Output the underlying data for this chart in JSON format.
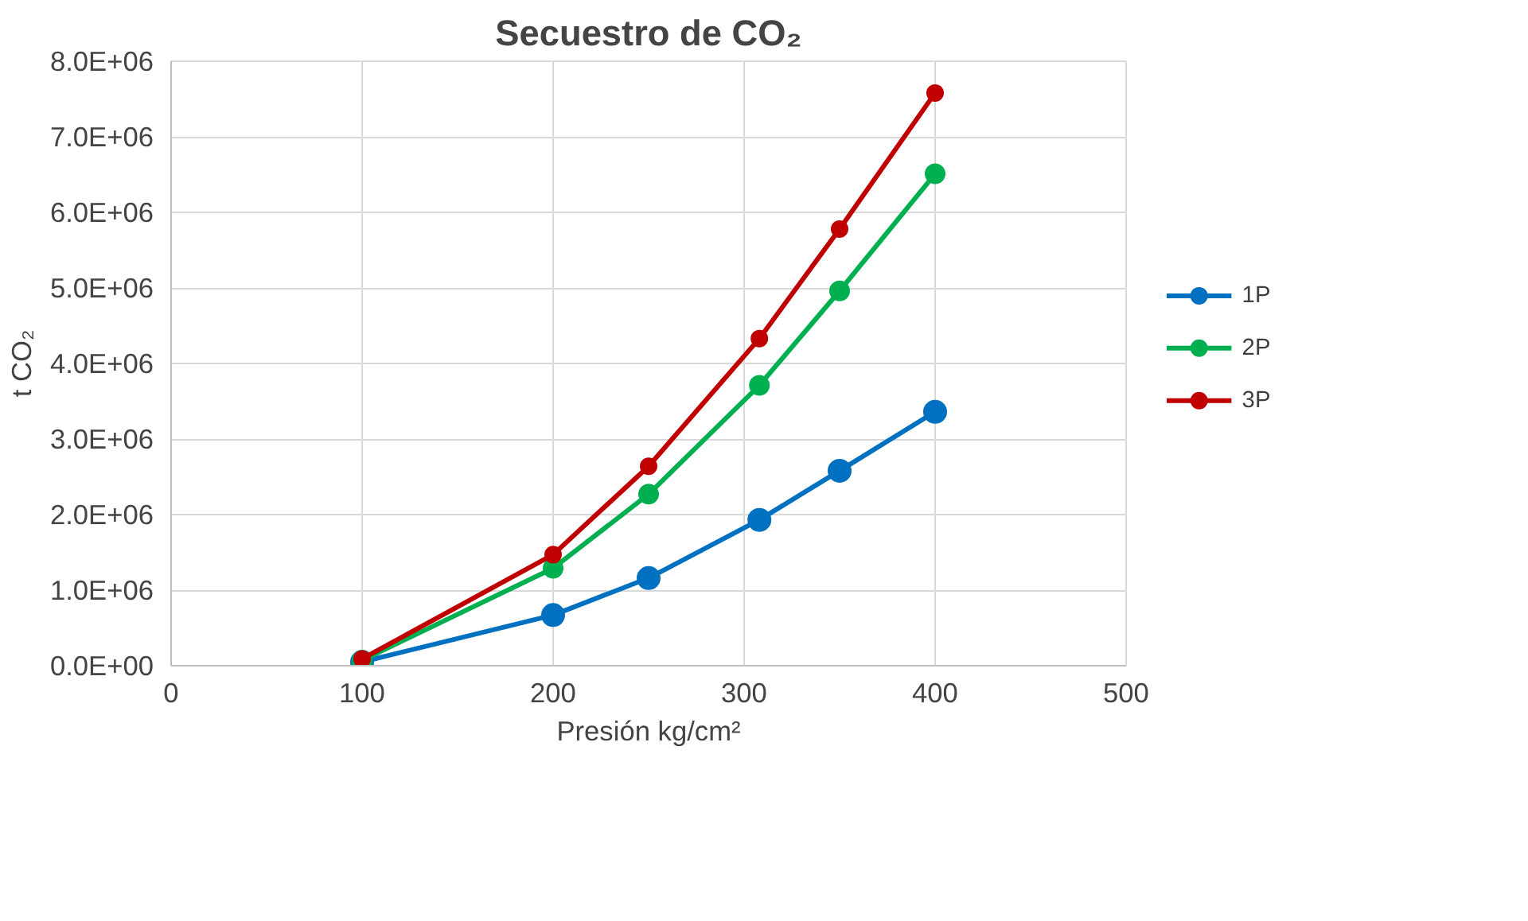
{
  "chart_data": {
    "type": "line",
    "title": "Secuestro de CO₂",
    "xlabel": "Presión kg/cm²",
    "ylabel": "t CO₂",
    "x": [
      100,
      200,
      250,
      308,
      350,
      400
    ],
    "series": [
      {
        "name": "1P",
        "color": "#0070c0",
        "values": [
          50000,
          670000,
          1160000,
          1930000,
          2580000,
          3360000
        ]
      },
      {
        "name": "2P",
        "color": "#00b050",
        "values": [
          70000,
          1290000,
          2270000,
          3710000,
          4960000,
          6510000
        ]
      },
      {
        "name": "3P",
        "color": "#c00000",
        "values": [
          90000,
          1470000,
          2640000,
          4330000,
          5780000,
          7580000
        ]
      }
    ],
    "xlim": [
      0,
      500
    ],
    "xticks": [
      0,
      100,
      200,
      300,
      400,
      500
    ],
    "ylim": [
      0,
      8000000
    ],
    "yticks": [
      {
        "value": 0,
        "label": "0.0E+00"
      },
      {
        "value": 1000000,
        "label": "1.0E+06"
      },
      {
        "value": 2000000,
        "label": "2.0E+06"
      },
      {
        "value": 3000000,
        "label": "3.0E+06"
      },
      {
        "value": 4000000,
        "label": "4.0E+06"
      },
      {
        "value": 5000000,
        "label": "5.0E+06"
      },
      {
        "value": 6000000,
        "label": "6.0E+06"
      },
      {
        "value": 7000000,
        "label": "7.0E+06"
      },
      {
        "value": 8000000,
        "label": "8.0E+06"
      }
    ],
    "grid": true,
    "legend": "right",
    "marker": "circle",
    "line_style": "solid"
  }
}
